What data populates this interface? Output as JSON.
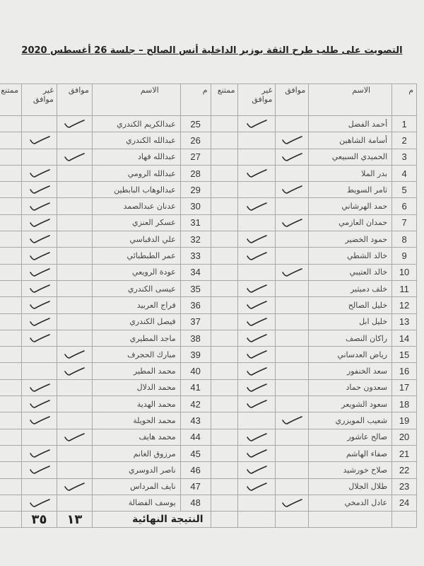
{
  "title": "التصويت على طلب طرح الثقة بوزير الداخلية  أنس الصالح – جلسة 26 أغسطس 2020",
  "headers": {
    "num": "م",
    "name": "الاسم",
    "agree": "موافق",
    "disagree": "غير موافق",
    "abstain": "ممتنع"
  },
  "rows": [
    {
      "num": "1",
      "name": "أحمد الفضل",
      "vote": "disagree"
    },
    {
      "num": "2",
      "name": "أسامة الشاهين",
      "vote": "agree"
    },
    {
      "num": "3",
      "name": "الحميدي السبيعي",
      "vote": "agree"
    },
    {
      "num": "4",
      "name": "بدر الملا",
      "vote": "disagree"
    },
    {
      "num": "5",
      "name": "ثامر السويط",
      "vote": "agree"
    },
    {
      "num": "6",
      "name": "حمد الهرشاني",
      "vote": "disagree"
    },
    {
      "num": "7",
      "name": "حمدان العازمي",
      "vote": "agree"
    },
    {
      "num": "8",
      "name": "حمود الخضير",
      "vote": "disagree"
    },
    {
      "num": "9",
      "name": "خالد الشطي",
      "vote": "disagree"
    },
    {
      "num": "10",
      "name": "خالد العتيبي",
      "vote": "agree"
    },
    {
      "num": "11",
      "name": "خلف دميثير",
      "vote": "disagree"
    },
    {
      "num": "12",
      "name": "خليل الصالح",
      "vote": "disagree"
    },
    {
      "num": "13",
      "name": "خليل ابل",
      "vote": "disagree"
    },
    {
      "num": "14",
      "name": "راكان النصف",
      "vote": "disagree"
    },
    {
      "num": "15",
      "name": "رياض العدساني",
      "vote": "disagree"
    },
    {
      "num": "16",
      "name": "سعد الخنفور",
      "vote": "disagree"
    },
    {
      "num": "17",
      "name": "سعدون حماد",
      "vote": "disagree"
    },
    {
      "num": "18",
      "name": "سعود الشويعر",
      "vote": "disagree"
    },
    {
      "num": "19",
      "name": "شعيب المويزري",
      "vote": "agree"
    },
    {
      "num": "20",
      "name": "صالح عاشور",
      "vote": "disagree"
    },
    {
      "num": "21",
      "name": "صفاء الهاشم",
      "vote": "disagree"
    },
    {
      "num": "22",
      "name": "صلاح خورشيد",
      "vote": "disagree"
    },
    {
      "num": "23",
      "name": "طلال الجلال",
      "vote": "disagree"
    },
    {
      "num": "24",
      "name": "عادل الدمخي",
      "vote": "agree"
    },
    {
      "num": "25",
      "name": "عبدالكريم الكندري",
      "vote": "agree"
    },
    {
      "num": "26",
      "name": "عبدالله الكندري",
      "vote": "disagree"
    },
    {
      "num": "27",
      "name": "عبدالله فهاد",
      "vote": "agree"
    },
    {
      "num": "28",
      "name": "عبدالله الرومي",
      "vote": "disagree"
    },
    {
      "num": "29",
      "name": "عبدالوهاب البابطين",
      "vote": "disagree"
    },
    {
      "num": "30",
      "name": "عدنان عبدالصمد",
      "vote": "disagree"
    },
    {
      "num": "31",
      "name": "عسكر العنزي",
      "vote": "disagree"
    },
    {
      "num": "32",
      "name": "علي الدقباسي",
      "vote": "disagree"
    },
    {
      "num": "33",
      "name": "عمر الطبطبائي",
      "vote": "disagree"
    },
    {
      "num": "34",
      "name": "عودة الرويعي",
      "vote": "disagree"
    },
    {
      "num": "35",
      "name": "عيسى الكندري",
      "vote": "disagree"
    },
    {
      "num": "36",
      "name": "فراج العربيد",
      "vote": "disagree"
    },
    {
      "num": "37",
      "name": "فيصل الكندري",
      "vote": "disagree"
    },
    {
      "num": "38",
      "name": "ماجد المطيري",
      "vote": "disagree"
    },
    {
      "num": "39",
      "name": "مبارك الحجرف",
      "vote": "agree"
    },
    {
      "num": "40",
      "name": "محمد المطير",
      "vote": "agree"
    },
    {
      "num": "41",
      "name": "محمد الدلال",
      "vote": "disagree"
    },
    {
      "num": "42",
      "name": "محمد الهدية",
      "vote": "disagree"
    },
    {
      "num": "43",
      "name": "محمد الحويلة",
      "vote": "disagree"
    },
    {
      "num": "44",
      "name": "محمد هايف",
      "vote": "agree"
    },
    {
      "num": "45",
      "name": "مرزوق الغانم",
      "vote": "disagree"
    },
    {
      "num": "46",
      "name": "ناصر الدوسري",
      "vote": "disagree"
    },
    {
      "num": "47",
      "name": "نايف المرداس",
      "vote": "agree"
    },
    {
      "num": "48",
      "name": "يوسف الفضالة",
      "vote": "disagree"
    }
  ],
  "result": {
    "label": "النتيجة النهائية",
    "agree": "١٣",
    "disagree": "٣٥"
  },
  "colors": {
    "tick": "#2a2a2a",
    "grid": "#a9a9a9",
    "paper": "#ececea"
  }
}
